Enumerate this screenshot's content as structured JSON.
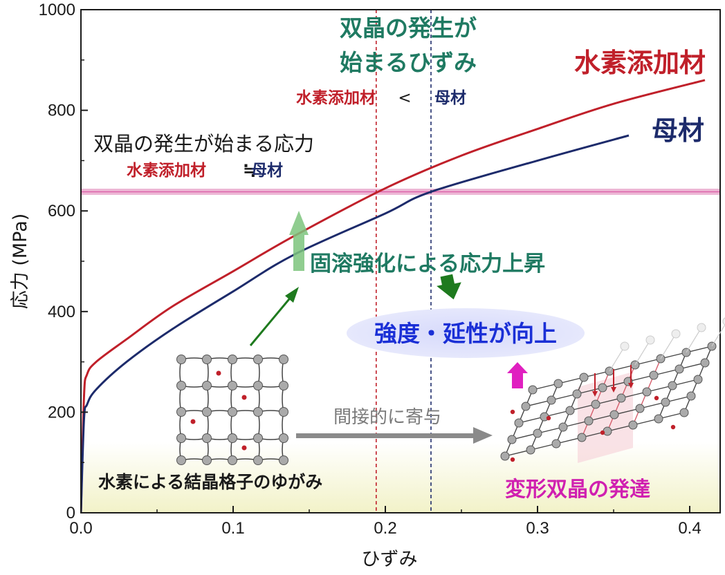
{
  "chart_data": {
    "type": "line",
    "xlabel": "ひずみ",
    "ylabel": "応力 (MPa)",
    "xlim": [
      0.0,
      0.42
    ],
    "ylim": [
      0,
      1000
    ],
    "xticks": [
      "0.0",
      "0.1",
      "0.2",
      "0.3",
      "0.4"
    ],
    "yticks": [
      "0",
      "200",
      "400",
      "600",
      "800",
      "1000"
    ],
    "series": [
      {
        "name": "水素添加材",
        "color": "#c0202a",
        "points": [
          [
            0.0,
            0
          ],
          [
            0.002,
            230
          ],
          [
            0.004,
            275
          ],
          [
            0.01,
            300
          ],
          [
            0.03,
            345
          ],
          [
            0.06,
            410
          ],
          [
            0.1,
            480
          ],
          [
            0.14,
            550
          ],
          [
            0.2,
            645
          ],
          [
            0.25,
            710
          ],
          [
            0.3,
            763
          ],
          [
            0.35,
            813
          ],
          [
            0.41,
            860
          ]
        ]
      },
      {
        "name": "母材",
        "color": "#1d2b6b",
        "points": [
          [
            0.0,
            0
          ],
          [
            0.002,
            185
          ],
          [
            0.004,
            215
          ],
          [
            0.01,
            245
          ],
          [
            0.03,
            300
          ],
          [
            0.06,
            365
          ],
          [
            0.1,
            440
          ],
          [
            0.14,
            513
          ],
          [
            0.2,
            595
          ],
          [
            0.23,
            638
          ],
          [
            0.3,
            700
          ],
          [
            0.36,
            750
          ]
        ]
      }
    ],
    "hline": {
      "y": 638,
      "color": "#e8a0c8"
    },
    "vlines": [
      {
        "x": 0.194,
        "color": "#c0202a"
      },
      {
        "x": 0.23,
        "color": "#1d2b6b"
      }
    ],
    "annotations": {
      "twin_start_strain_l1": "双晶の発生が",
      "twin_start_strain_l2": "始まるひずみ",
      "strain_cmp_h": "水素添加材",
      "strain_cmp_op": "<",
      "strain_cmp_b": "母材",
      "label_h": "水素添加材",
      "label_b": "母材",
      "twin_start_stress": "双晶の発生が始まる応力",
      "stress_cmp_h": "水素添加材",
      "stress_cmp_op": "≒",
      "stress_cmp_b": "母材",
      "solid_solution": "固溶強化による応力上昇",
      "improve": "強度・延性が向上",
      "indirect": "間接的に寄与",
      "lattice_distortion": "水素による結晶格子のゆがみ",
      "twin_growth": "変形双晶の発達"
    }
  }
}
